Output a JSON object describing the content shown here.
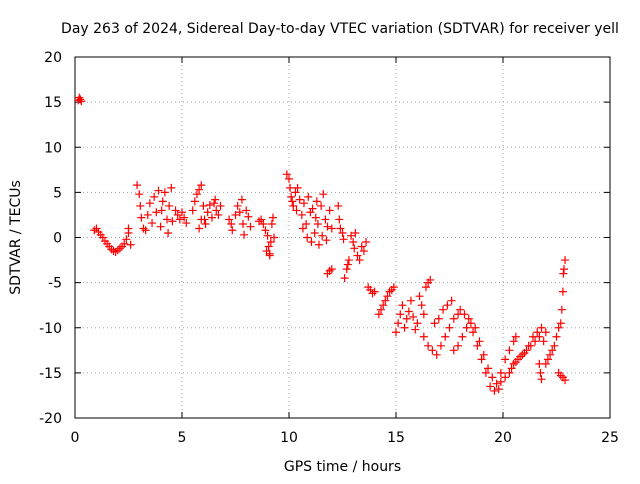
{
  "colors": {
    "series": "#ff0000",
    "grid": "#a0a0a0",
    "axis": "#000000"
  },
  "chart_data": {
    "type": "scatter",
    "title": "Day 263 of 2024, Sidereal Day-to-day VTEC variation (SDTVAR) for receiver yell",
    "xlabel": "GPS time / hours",
    "ylabel": "SDTVAR / TECUs",
    "xlim": [
      0,
      25
    ],
    "ylim": [
      -20,
      20
    ],
    "xticks": [
      0,
      5,
      10,
      15,
      20,
      25
    ],
    "xtick_labels": [
      "0",
      "5",
      "10",
      "15",
      "20",
      "25"
    ],
    "yticks": [
      -20,
      -15,
      -10,
      -5,
      0,
      5,
      10,
      15,
      20
    ],
    "ytick_labels": [
      "-20",
      "-15",
      "-10",
      "-5",
      "0",
      "5",
      "10",
      "15",
      "20"
    ],
    "grid": true,
    "marker": "+",
    "series": [
      {
        "name": "SDTVAR",
        "color": "#ff0000",
        "points": [
          [
            0.15,
            15.2
          ],
          [
            0.2,
            15.5
          ],
          [
            0.25,
            15.3
          ],
          [
            0.3,
            15.1
          ],
          [
            0.9,
            0.8
          ],
          [
            1.0,
            1.0
          ],
          [
            1.1,
            0.6
          ],
          [
            1.2,
            0.3
          ],
          [
            1.3,
            0.0
          ],
          [
            1.4,
            -0.4
          ],
          [
            1.5,
            -0.7
          ],
          [
            1.6,
            -1.0
          ],
          [
            1.7,
            -1.3
          ],
          [
            1.8,
            -1.5
          ],
          [
            1.9,
            -1.6
          ],
          [
            2.0,
            -1.4
          ],
          [
            2.1,
            -1.2
          ],
          [
            2.2,
            -1.0
          ],
          [
            2.3,
            -0.7
          ],
          [
            2.4,
            -0.2
          ],
          [
            2.5,
            0.5
          ],
          [
            2.5,
            1.0
          ],
          [
            2.6,
            -0.8
          ],
          [
            2.9,
            5.8
          ],
          [
            3.0,
            4.8
          ],
          [
            3.05,
            3.5
          ],
          [
            3.1,
            2.2
          ],
          [
            3.2,
            1.0
          ],
          [
            3.3,
            0.8
          ],
          [
            3.4,
            2.5
          ],
          [
            3.5,
            3.8
          ],
          [
            3.6,
            1.6
          ],
          [
            3.7,
            4.5
          ],
          [
            3.8,
            2.8
          ],
          [
            3.9,
            5.2
          ],
          [
            4.0,
            1.2
          ],
          [
            4.05,
            3.0
          ],
          [
            4.1,
            4.0
          ],
          [
            4.2,
            5.0
          ],
          [
            4.3,
            2.0
          ],
          [
            4.35,
            0.5
          ],
          [
            4.4,
            3.5
          ],
          [
            4.5,
            5.5
          ],
          [
            4.55,
            1.8
          ],
          [
            4.7,
            3.0
          ],
          [
            4.8,
            2.5
          ],
          [
            4.9,
            2.0
          ],
          [
            5.0,
            2.8
          ],
          [
            5.1,
            2.2
          ],
          [
            5.2,
            1.6
          ],
          [
            5.5,
            3.0
          ],
          [
            5.6,
            4.0
          ],
          [
            5.7,
            4.8
          ],
          [
            5.8,
            5.3
          ],
          [
            5.9,
            5.8
          ],
          [
            6.0,
            3.5
          ],
          [
            6.05,
            2.0
          ],
          [
            6.1,
            1.5
          ],
          [
            6.2,
            2.8
          ],
          [
            6.3,
            3.6
          ],
          [
            6.4,
            2.2
          ],
          [
            6.5,
            3.8
          ],
          [
            6.55,
            4.2
          ],
          [
            6.6,
            3.0
          ],
          [
            6.7,
            2.5
          ],
          [
            6.8,
            3.5
          ],
          [
            5.8,
            1.0
          ],
          [
            5.9,
            2.0
          ],
          [
            7.2,
            2.0
          ],
          [
            7.3,
            1.5
          ],
          [
            7.35,
            0.8
          ],
          [
            7.5,
            2.5
          ],
          [
            7.6,
            3.5
          ],
          [
            7.7,
            2.8
          ],
          [
            7.8,
            4.2
          ],
          [
            7.85,
            1.5
          ],
          [
            7.9,
            0.3
          ],
          [
            8.0,
            3.0
          ],
          [
            8.1,
            2.3
          ],
          [
            8.2,
            1.2
          ],
          [
            8.6,
            1.8
          ],
          [
            8.7,
            2.0
          ],
          [
            8.8,
            1.5
          ],
          [
            8.9,
            0.8
          ],
          [
            9.0,
            0.2
          ],
          [
            9.05,
            -1.0
          ],
          [
            9.1,
            -1.8
          ],
          [
            9.15,
            -0.5
          ],
          [
            9.2,
            1.5
          ],
          [
            9.25,
            2.2
          ],
          [
            8.95,
            -1.5
          ],
          [
            9.1,
            -2.0
          ],
          [
            9.3,
            0.0
          ],
          [
            9.9,
            7.0
          ],
          [
            10.0,
            6.5
          ],
          [
            10.05,
            5.5
          ],
          [
            10.1,
            4.5
          ],
          [
            10.15,
            4.0
          ],
          [
            10.2,
            3.5
          ],
          [
            10.3,
            5.0
          ],
          [
            10.35,
            3.0
          ],
          [
            10.4,
            5.5
          ],
          [
            10.5,
            4.2
          ],
          [
            10.6,
            2.5
          ],
          [
            10.65,
            1.0
          ],
          [
            10.7,
            3.8
          ],
          [
            10.8,
            1.5
          ],
          [
            10.85,
            0.0
          ],
          [
            10.9,
            4.5
          ],
          [
            11.0,
            2.8
          ],
          [
            11.05,
            -0.5
          ],
          [
            11.1,
            3.2
          ],
          [
            11.2,
            0.5
          ],
          [
            11.25,
            2.2
          ],
          [
            11.3,
            4.0
          ],
          [
            11.35,
            1.5
          ],
          [
            11.4,
            -0.8
          ],
          [
            11.5,
            3.5
          ],
          [
            11.55,
            0.2
          ],
          [
            11.6,
            4.8
          ],
          [
            11.7,
            2.0
          ],
          [
            11.75,
            -0.3
          ],
          [
            11.8,
            1.2
          ],
          [
            11.9,
            3.0
          ],
          [
            12.0,
            1.0
          ],
          [
            11.8,
            -4.0
          ],
          [
            11.9,
            -3.7
          ],
          [
            12.0,
            -3.5
          ],
          [
            12.3,
            3.5
          ],
          [
            12.35,
            2.0
          ],
          [
            12.4,
            1.0
          ],
          [
            12.5,
            0.5
          ],
          [
            12.55,
            -0.2
          ],
          [
            12.6,
            -4.5
          ],
          [
            12.7,
            -3.5
          ],
          [
            12.75,
            -3.0
          ],
          [
            12.8,
            -2.5
          ],
          [
            12.9,
            0.2
          ],
          [
            13.0,
            -0.5
          ],
          [
            13.05,
            -1.2
          ],
          [
            13.1,
            0.5
          ],
          [
            13.2,
            -2.0
          ],
          [
            13.3,
            -2.5
          ],
          [
            13.4,
            -1.0
          ],
          [
            13.5,
            -1.5
          ],
          [
            13.6,
            -0.5
          ],
          [
            13.7,
            -5.5
          ],
          [
            13.8,
            -5.8
          ],
          [
            13.9,
            -6.2
          ],
          [
            14.0,
            -6.0
          ],
          [
            14.2,
            -8.5
          ],
          [
            14.3,
            -8.0
          ],
          [
            14.4,
            -7.5
          ],
          [
            14.5,
            -7.0
          ],
          [
            14.6,
            -6.5
          ],
          [
            14.7,
            -6.0
          ],
          [
            14.8,
            -5.8
          ],
          [
            14.9,
            -5.5
          ],
          [
            15.0,
            -10.5
          ],
          [
            15.1,
            -9.5
          ],
          [
            15.2,
            -8.5
          ],
          [
            15.3,
            -7.5
          ],
          [
            15.4,
            -10.0
          ],
          [
            15.5,
            -9.0
          ],
          [
            15.6,
            -8.2
          ],
          [
            15.7,
            -7.0
          ],
          [
            15.8,
            -8.8
          ],
          [
            15.9,
            -10.2
          ],
          [
            16.0,
            -9.5
          ],
          [
            16.1,
            -6.5
          ],
          [
            16.2,
            -7.5
          ],
          [
            16.3,
            -8.5
          ],
          [
            16.4,
            -5.5
          ],
          [
            16.5,
            -5.0
          ],
          [
            16.6,
            -4.7
          ],
          [
            16.3,
            -11.0
          ],
          [
            16.5,
            -12.0
          ],
          [
            16.7,
            -12.5
          ],
          [
            16.9,
            -13.0
          ],
          [
            17.1,
            -12.0
          ],
          [
            17.3,
            -11.0
          ],
          [
            17.5,
            -10.0
          ],
          [
            17.7,
            -9.0
          ],
          [
            17.9,
            -8.5
          ],
          [
            16.8,
            -9.5
          ],
          [
            17.0,
            -9.0
          ],
          [
            17.2,
            -8.0
          ],
          [
            17.4,
            -7.5
          ],
          [
            17.6,
            -7.0
          ],
          [
            17.7,
            -12.5
          ],
          [
            17.9,
            -12.0
          ],
          [
            18.1,
            -11.0
          ],
          [
            18.3,
            -10.0
          ],
          [
            18.5,
            -9.5
          ],
          [
            18.7,
            -10.0
          ],
          [
            18.9,
            -11.5
          ],
          [
            19.1,
            -13.0
          ],
          [
            19.3,
            -14.5
          ],
          [
            19.5,
            -15.5
          ],
          [
            19.7,
            -16.2
          ],
          [
            19.9,
            -15.0
          ],
          [
            20.1,
            -13.5
          ],
          [
            20.3,
            -12.5
          ],
          [
            20.5,
            -11.5
          ],
          [
            20.6,
            -11.0
          ],
          [
            18.0,
            -8.0
          ],
          [
            18.2,
            -8.5
          ],
          [
            18.4,
            -9.0
          ],
          [
            18.6,
            -10.5
          ],
          [
            18.8,
            -12.0
          ],
          [
            19.0,
            -13.5
          ],
          [
            19.2,
            -15.0
          ],
          [
            19.4,
            -16.5
          ],
          [
            19.6,
            -17.0
          ],
          [
            19.8,
            -16.8
          ],
          [
            19.9,
            -16.0
          ],
          [
            20.1,
            -15.5
          ],
          [
            20.3,
            -15.0
          ],
          [
            20.5,
            -14.0
          ],
          [
            20.7,
            -13.5
          ],
          [
            20.9,
            -13.0
          ],
          [
            21.1,
            -12.5
          ],
          [
            21.3,
            -12.0
          ],
          [
            21.5,
            -11.5
          ],
          [
            21.7,
            -11.0
          ],
          [
            21.9,
            -11.5
          ],
          [
            20.4,
            -14.5
          ],
          [
            20.6,
            -13.8
          ],
          [
            20.8,
            -13.2
          ],
          [
            21.0,
            -12.8
          ],
          [
            21.2,
            -12.0
          ],
          [
            21.4,
            -11.0
          ],
          [
            21.6,
            -10.5
          ],
          [
            21.8,
            -10.0
          ],
          [
            22.0,
            -10.5
          ],
          [
            21.7,
            -14.0
          ],
          [
            21.75,
            -15.0
          ],
          [
            21.8,
            -15.7
          ],
          [
            22.0,
            -14.0
          ],
          [
            22.1,
            -13.5
          ],
          [
            22.2,
            -13.0
          ],
          [
            22.3,
            -12.5
          ],
          [
            22.4,
            -12.0
          ],
          [
            22.5,
            -11.0
          ],
          [
            22.6,
            -10.0
          ],
          [
            22.7,
            -9.5
          ],
          [
            22.75,
            -8.0
          ],
          [
            22.8,
            -6.0
          ],
          [
            22.82,
            -4.0
          ],
          [
            22.85,
            -3.5
          ],
          [
            22.9,
            -2.5
          ],
          [
            22.6,
            -15.0
          ],
          [
            22.7,
            -15.3
          ],
          [
            22.8,
            -15.5
          ],
          [
            22.9,
            -15.8
          ]
        ]
      }
    ]
  }
}
